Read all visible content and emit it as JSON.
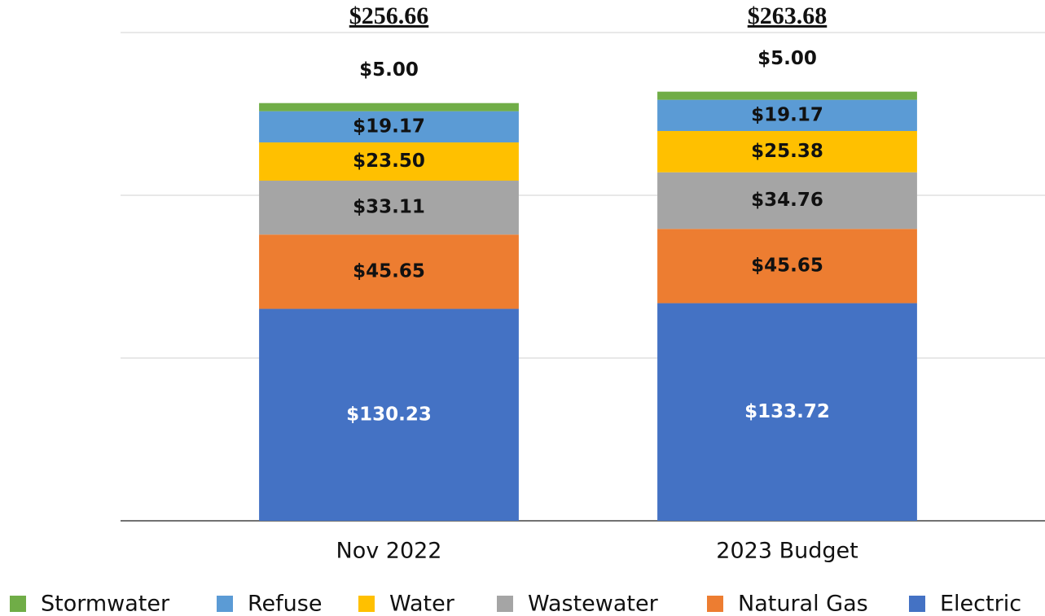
{
  "chart_data": {
    "type": "stacked_bar",
    "categories": [
      "Nov 2022",
      "2023 Budget"
    ],
    "totals": [
      "$256.66",
      "$263.68"
    ],
    "series": [
      {
        "name": "Electric",
        "color": "#4472c4",
        "values": [
          130.23,
          133.72
        ],
        "value_labels": [
          "$130.23",
          "$133.72"
        ]
      },
      {
        "name": "Natural Gas",
        "color": "#ed7d31",
        "values": [
          45.65,
          45.65
        ],
        "value_labels": [
          "$45.65",
          "$45.65"
        ]
      },
      {
        "name": "Wastewater",
        "color": "#a5a5a5",
        "values": [
          33.11,
          34.76
        ],
        "value_labels": [
          "$33.11",
          "$34.76"
        ]
      },
      {
        "name": "Water",
        "color": "#ffc000",
        "values": [
          23.5,
          25.38
        ],
        "value_labels": [
          "$23.50",
          "$25.38"
        ]
      },
      {
        "name": "Refuse",
        "color": "#5b9bd5",
        "values": [
          19.17,
          19.17
        ],
        "value_labels": [
          "$19.17",
          "$19.17"
        ]
      },
      {
        "name": "Stormwater",
        "color": "#70ad47",
        "values": [
          5,
          5
        ],
        "value_labels": [
          "$5.00",
          "$5.00"
        ]
      }
    ],
    "ylim": [
      0,
      300
    ],
    "yticks": [
      0,
      100,
      200,
      300
    ],
    "grid": true,
    "legend": "bottom"
  }
}
